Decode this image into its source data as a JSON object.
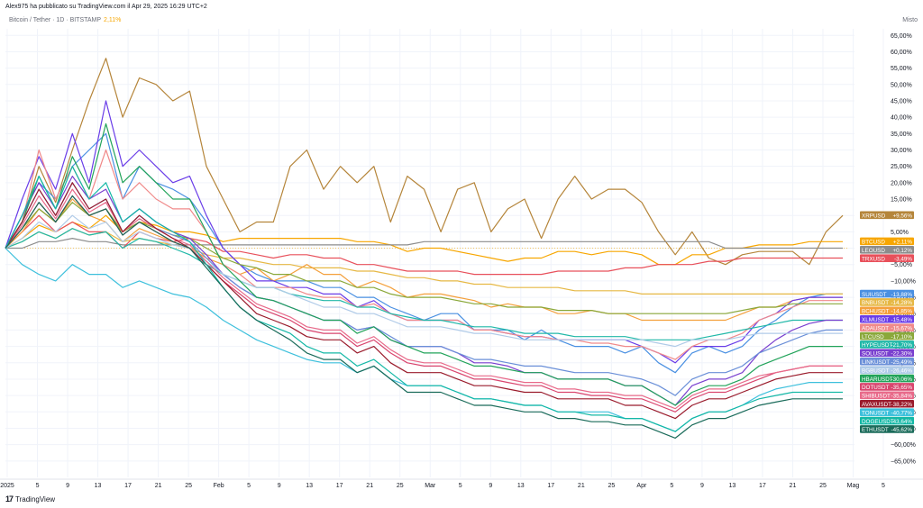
{
  "header": {
    "attribution": "Alex975 ha pubblicato su TradingView.com il Apr 29, 2025 16:29 UTC+2",
    "symbol": "Bitcoin / Tether · 1D · BITSTAMP",
    "symbol_change": "2,11%",
    "scale_name": "Misto"
  },
  "footer": {
    "brand": "TradingView",
    "logo_text": "17"
  },
  "chart_data": {
    "type": "line",
    "x_ticks": [
      "2025",
      "5",
      "9",
      "13",
      "17",
      "21",
      "25",
      "Feb",
      "5",
      "9",
      "13",
      "17",
      "21",
      "25",
      "Mar",
      "5",
      "9",
      "13",
      "17",
      "21",
      "25",
      "Apr",
      "5",
      "9",
      "13",
      "17",
      "21",
      "25",
      "Mag",
      "5"
    ],
    "y_ticks": [
      65,
      60,
      55,
      50,
      45,
      40,
      35,
      30,
      25,
      20,
      15,
      10,
      5,
      0,
      -5,
      -10,
      -15,
      -20,
      -25,
      -30,
      -35,
      -40,
      -45,
      -50,
      -55,
      -60,
      -65
    ],
    "y_unit": "%",
    "ylim": [
      -70,
      67
    ],
    "grid": true,
    "legend": "right",
    "series": [
      {
        "name": "XRPUSD",
        "value_label": "+9,56%",
        "color": "#b5853a",
        "values": [
          0,
          8,
          25,
          14,
          30,
          45,
          58,
          40,
          52,
          50,
          45,
          48,
          25,
          15,
          5,
          8,
          8,
          25,
          30,
          18,
          25,
          20,
          25,
          8,
          22,
          18,
          5,
          18,
          20,
          5,
          12,
          15,
          3,
          15,
          22,
          15,
          18,
          18,
          14,
          5,
          -2,
          5,
          -3,
          -5,
          -2,
          -1,
          -1,
          -1,
          -5,
          5,
          10
        ]
      },
      {
        "name": "BTCUSD",
        "value_label": "+2,11%",
        "color": "#f7a600",
        "values": [
          0,
          3,
          7,
          5,
          8,
          6,
          10,
          5,
          8,
          7,
          5,
          5,
          4,
          2,
          3,
          3,
          3,
          3,
          3,
          3,
          3,
          2,
          2,
          1,
          -1,
          0,
          0,
          -1,
          -2,
          -3,
          -4,
          -3,
          -3,
          -1,
          -1,
          -2,
          -1,
          -1,
          -2,
          -5,
          -5,
          -2,
          -2,
          0,
          0,
          1,
          1,
          1,
          2,
          2,
          2
        ]
      },
      {
        "name": "LEOUSD",
        "value_label": "+0,12%",
        "color": "#8c8c8c",
        "values": [
          0,
          0,
          2,
          2,
          3,
          2,
          2,
          1,
          1,
          1,
          1,
          1,
          1,
          1,
          1,
          1,
          1,
          1,
          1,
          1,
          1,
          1,
          1,
          1,
          1,
          2,
          2,
          2,
          2,
          2,
          2,
          2,
          2,
          2,
          2,
          2,
          2,
          2,
          2,
          2,
          2,
          2,
          2,
          0,
          0,
          0,
          0,
          0,
          0,
          0,
          0
        ]
      },
      {
        "name": "TRXUSD",
        "value_label": "-3,49%",
        "color": "#e8505b",
        "values": [
          0,
          5,
          10,
          5,
          8,
          5,
          5,
          0,
          5,
          3,
          2,
          3,
          2,
          -1,
          -1,
          -2,
          -3,
          -2,
          -2,
          -3,
          -3,
          -5,
          -5,
          -6,
          -7,
          -7,
          -7,
          -7,
          -8,
          -8,
          -8,
          -8,
          -8,
          -7,
          -7,
          -7,
          -7,
          -6,
          -6,
          -5,
          -5,
          -5,
          -4,
          -4,
          -3,
          -3,
          -3,
          -3,
          -3,
          -3,
          -3
        ]
      },
      {
        "name": "SUIUSDT",
        "value_label": "-13,88%",
        "color": "#4a90e2",
        "values": [
          0,
          10,
          20,
          15,
          25,
          30,
          35,
          15,
          25,
          20,
          18,
          15,
          8,
          0,
          -5,
          -8,
          -10,
          -10,
          -10,
          -12,
          -12,
          -15,
          -15,
          -18,
          -20,
          -22,
          -20,
          -20,
          -25,
          -25,
          -25,
          -28,
          -25,
          -28,
          -30,
          -30,
          -30,
          -32,
          -30,
          -35,
          -38,
          -32,
          -30,
          -32,
          -30,
          -25,
          -22,
          -18,
          -15,
          -14,
          -14
        ]
      },
      {
        "name": "BNBUSDT",
        "value_label": "-14,28%",
        "color": "#e6b845",
        "values": [
          0,
          2,
          5,
          3,
          6,
          4,
          5,
          2,
          3,
          2,
          1,
          0,
          -2,
          -3,
          -3,
          -4,
          -5,
          -5,
          -6,
          -6,
          -6,
          -7,
          -7,
          -8,
          -9,
          -9,
          -10,
          -10,
          -11,
          -11,
          -12,
          -12,
          -12,
          -12,
          -13,
          -13,
          -13,
          -13,
          -14,
          -14,
          -14,
          -14,
          -14,
          -14,
          -14,
          -14,
          -14,
          -14,
          -14,
          -14,
          -14
        ]
      },
      {
        "name": "BCHUSDT",
        "value_label": "-14,85%",
        "color": "#f4a03c",
        "values": [
          0,
          5,
          12,
          8,
          15,
          10,
          8,
          2,
          6,
          4,
          2,
          0,
          -3,
          -5,
          -8,
          -6,
          -10,
          -8,
          -5,
          -8,
          -8,
          -12,
          -10,
          -12,
          -15,
          -14,
          -14,
          -15,
          -16,
          -18,
          -17,
          -18,
          -18,
          -20,
          -20,
          -19,
          -20,
          -20,
          -22,
          -22,
          -22,
          -22,
          -22,
          -22,
          -20,
          -18,
          -18,
          -16,
          -15,
          -15,
          -15
        ]
      },
      {
        "name": "XLMUSDT",
        "value_label": "-15,48%",
        "color": "#6a3de8",
        "values": [
          0,
          15,
          28,
          18,
          35,
          20,
          45,
          25,
          30,
          25,
          20,
          22,
          10,
          0,
          -5,
          -10,
          -10,
          -12,
          -12,
          -14,
          -14,
          -18,
          -16,
          -20,
          -22,
          -22,
          -22,
          -22,
          -25,
          -25,
          -26,
          -27,
          -27,
          -28,
          -28,
          -28,
          -28,
          -28,
          -30,
          -32,
          -35,
          -30,
          -30,
          -30,
          -28,
          -22,
          -20,
          -16,
          -15,
          -15,
          -15
        ]
      },
      {
        "name": "ADAUSDT",
        "value_label": "-15,67%",
        "color": "#f08a8a",
        "values": [
          0,
          8,
          30,
          15,
          25,
          15,
          30,
          15,
          20,
          15,
          12,
          12,
          5,
          -5,
          -8,
          -12,
          -12,
          -12,
          -14,
          -15,
          -15,
          -18,
          -17,
          -20,
          -22,
          -22,
          -22,
          -22,
          -25,
          -25,
          -26,
          -27,
          -27,
          -28,
          -28,
          -29,
          -29,
          -30,
          -30,
          -32,
          -34,
          -30,
          -28,
          -28,
          -26,
          -22,
          -20,
          -18,
          -16,
          -16,
          -16
        ]
      },
      {
        "name": "LTCUSD",
        "value_label": "-17,10%",
        "color": "#8aa83a",
        "values": [
          0,
          6,
          12,
          8,
          14,
          10,
          12,
          5,
          8,
          6,
          4,
          3,
          0,
          -3,
          -5,
          -6,
          -8,
          -8,
          -10,
          -10,
          -10,
          -12,
          -12,
          -14,
          -15,
          -15,
          -15,
          -16,
          -17,
          -17,
          -18,
          -18,
          -18,
          -19,
          -19,
          -19,
          -20,
          -20,
          -20,
          -20,
          -20,
          -20,
          -20,
          -20,
          -19,
          -18,
          -18,
          -17,
          -17,
          -17,
          -17
        ]
      },
      {
        "name": "HYPEUSDT",
        "value_label": "-21,70%",
        "color": "#20b8a8",
        "values": [
          0,
          2,
          5,
          3,
          6,
          4,
          5,
          0,
          3,
          2,
          0,
          -2,
          -5,
          -8,
          -10,
          -12,
          -12,
          -14,
          -15,
          -16,
          -16,
          -18,
          -18,
          -20,
          -21,
          -22,
          -22,
          -23,
          -24,
          -24,
          -25,
          -26,
          -26,
          -26,
          -27,
          -27,
          -27,
          -27,
          -28,
          -28,
          -28,
          -28,
          -27,
          -26,
          -25,
          -24,
          -23,
          -22,
          -22,
          -22,
          -22
        ]
      },
      {
        "name": "SOLUSDT",
        "value_label": "-22,30%",
        "color": "#7a40cf",
        "values": [
          0,
          10,
          20,
          12,
          22,
          15,
          18,
          8,
          12,
          8,
          5,
          3,
          -2,
          -8,
          -12,
          -15,
          -16,
          -18,
          -20,
          -22,
          -22,
          -25,
          -24,
          -28,
          -30,
          -30,
          -30,
          -32,
          -35,
          -35,
          -36,
          -38,
          -38,
          -40,
          -40,
          -40,
          -40,
          -42,
          -42,
          -45,
          -48,
          -42,
          -40,
          -40,
          -38,
          -32,
          -28,
          -25,
          -23,
          -22,
          -22
        ]
      },
      {
        "name": "LINKUSDT",
        "value_label": "-25,49%",
        "color": "#6a8fd8",
        "values": [
          0,
          8,
          18,
          10,
          20,
          12,
          15,
          5,
          10,
          6,
          4,
          2,
          -3,
          -8,
          -12,
          -15,
          -16,
          -18,
          -20,
          -22,
          -22,
          -25,
          -24,
          -27,
          -30,
          -30,
          -30,
          -32,
          -34,
          -34,
          -35,
          -36,
          -36,
          -37,
          -38,
          -38,
          -38,
          -39,
          -40,
          -42,
          -45,
          -40,
          -38,
          -38,
          -36,
          -32,
          -30,
          -28,
          -26,
          -25,
          -25
        ]
      },
      {
        "name": "BGBUSDT",
        "value_label": "-26,46%",
        "color": "#b0cbe8",
        "values": [
          0,
          3,
          8,
          5,
          10,
          6,
          8,
          2,
          5,
          3,
          1,
          0,
          -4,
          -8,
          -10,
          -12,
          -12,
          -14,
          -16,
          -18,
          -18,
          -20,
          -20,
          -22,
          -24,
          -24,
          -24,
          -25,
          -26,
          -26,
          -27,
          -28,
          -28,
          -28,
          -28,
          -28,
          -28,
          -28,
          -28,
          -29,
          -30,
          -28,
          -28,
          -28,
          -27,
          -26,
          -26,
          -26,
          -26,
          -26,
          -26
        ]
      },
      {
        "name": "HBARUSDT",
        "value_label": "-30,06%",
        "color": "#22a35a",
        "values": [
          0,
          8,
          22,
          12,
          28,
          18,
          38,
          20,
          25,
          20,
          15,
          15,
          5,
          -5,
          -10,
          -15,
          -16,
          -18,
          -20,
          -22,
          -22,
          -26,
          -24,
          -28,
          -30,
          -32,
          -32,
          -34,
          -36,
          -36,
          -37,
          -38,
          -38,
          -40,
          -40,
          -40,
          -40,
          -42,
          -42,
          -45,
          -48,
          -44,
          -42,
          -42,
          -40,
          -36,
          -34,
          -32,
          -30,
          -30,
          -30
        ]
      },
      {
        "name": "DOTUSDT",
        "value_label": "-35,65%",
        "color": "#d9456e",
        "values": [
          0,
          6,
          14,
          8,
          16,
          10,
          12,
          4,
          8,
          5,
          2,
          0,
          -5,
          -10,
          -14,
          -18,
          -20,
          -22,
          -25,
          -26,
          -26,
          -30,
          -28,
          -32,
          -35,
          -36,
          -36,
          -38,
          -40,
          -40,
          -41,
          -42,
          -42,
          -44,
          -44,
          -45,
          -45,
          -46,
          -46,
          -48,
          -50,
          -46,
          -44,
          -44,
          -42,
          -40,
          -38,
          -37,
          -36,
          -36,
          -36
        ]
      },
      {
        "name": "SHIBUSDT",
        "value_label": "-35,84%",
        "color": "#e86a8a",
        "values": [
          0,
          7,
          16,
          9,
          18,
          11,
          14,
          5,
          9,
          6,
          3,
          1,
          -4,
          -9,
          -13,
          -17,
          -19,
          -21,
          -24,
          -25,
          -25,
          -29,
          -27,
          -31,
          -34,
          -35,
          -35,
          -37,
          -39,
          -39,
          -40,
          -41,
          -41,
          -43,
          -43,
          -44,
          -44,
          -45,
          -45,
          -47,
          -49,
          -45,
          -43,
          -43,
          -41,
          -39,
          -38,
          -37,
          -36,
          -36,
          -36
        ]
      },
      {
        "name": "AVAXUSDT",
        "value_label": "-38,22%",
        "color": "#9a1b2c",
        "values": [
          0,
          8,
          18,
          10,
          20,
          12,
          15,
          5,
          10,
          6,
          3,
          0,
          -5,
          -10,
          -15,
          -20,
          -22,
          -24,
          -27,
          -28,
          -28,
          -32,
          -30,
          -35,
          -38,
          -38,
          -38,
          -40,
          -42,
          -42,
          -43,
          -44,
          -44,
          -46,
          -46,
          -46,
          -46,
          -48,
          -48,
          -50,
          -52,
          -48,
          -46,
          -46,
          -44,
          -42,
          -40,
          -39,
          -38,
          -38,
          -38
        ]
      },
      {
        "name": "TONUSDT",
        "value_label": "-40,77%",
        "color": "#3ec0dc",
        "values": [
          0,
          -5,
          -8,
          -10,
          -5,
          -8,
          -8,
          -12,
          -10,
          -12,
          -14,
          -15,
          -18,
          -22,
          -25,
          -28,
          -30,
          -32,
          -34,
          -35,
          -35,
          -38,
          -36,
          -40,
          -42,
          -42,
          -42,
          -44,
          -46,
          -46,
          -47,
          -48,
          -48,
          -50,
          -50,
          -50,
          -50,
          -52,
          -52,
          -54,
          -56,
          -52,
          -50,
          -50,
          -48,
          -45,
          -43,
          -42,
          -41,
          -41,
          -41
        ]
      },
      {
        "name": "DOGEUSDT",
        "value_label": "-43,64%",
        "color": "#14b8a6",
        "values": [
          0,
          10,
          22,
          12,
          25,
          15,
          20,
          8,
          12,
          8,
          5,
          2,
          -5,
          -12,
          -18,
          -22,
          -24,
          -26,
          -30,
          -32,
          -32,
          -36,
          -34,
          -38,
          -42,
          -42,
          -42,
          -44,
          -46,
          -46,
          -47,
          -48,
          -48,
          -50,
          -50,
          -51,
          -51,
          -52,
          -52,
          -54,
          -56,
          -52,
          -50,
          -50,
          -48,
          -46,
          -45,
          -44,
          -44,
          -44,
          -44
        ]
      },
      {
        "name": "ETHUSDT",
        "value_label": "-45,62%",
        "color": "#1a6b5a",
        "values": [
          0,
          6,
          14,
          8,
          16,
          10,
          12,
          4,
          8,
          5,
          2,
          0,
          -6,
          -12,
          -18,
          -22,
          -25,
          -28,
          -32,
          -34,
          -34,
          -38,
          -36,
          -40,
          -44,
          -44,
          -44,
          -46,
          -48,
          -48,
          -49,
          -50,
          -50,
          -52,
          -52,
          -53,
          -53,
          -54,
          -54,
          -56,
          -58,
          -54,
          -52,
          -52,
          -50,
          -48,
          -47,
          -46,
          -46,
          -46,
          -46
        ]
      }
    ]
  }
}
